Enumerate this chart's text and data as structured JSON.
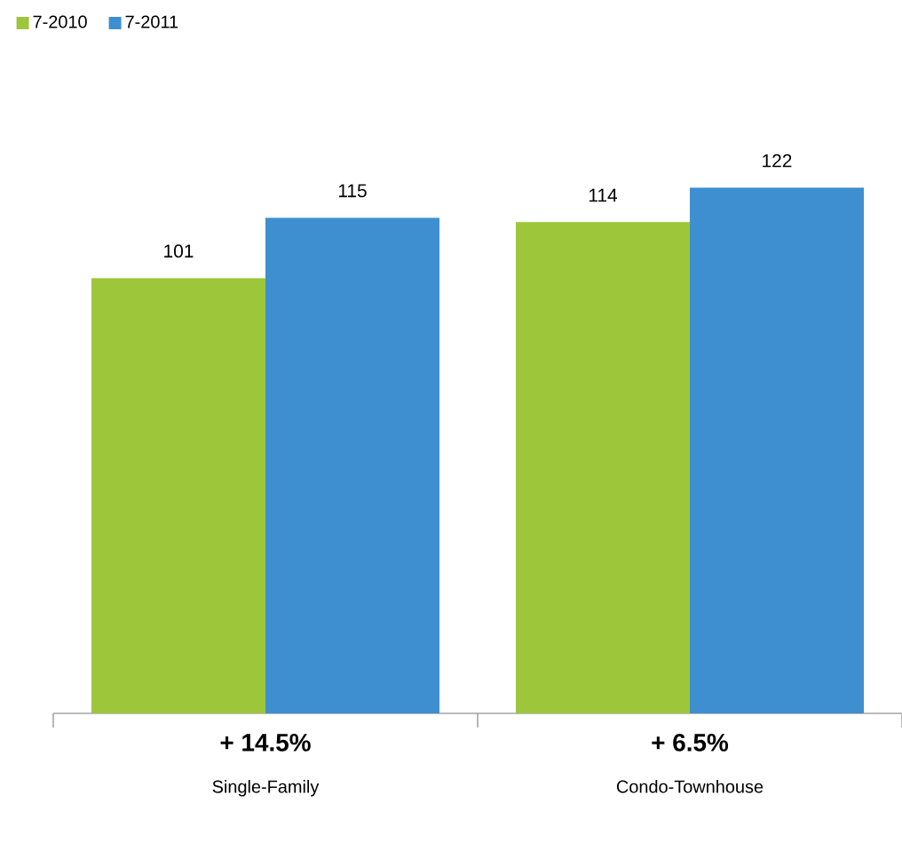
{
  "chart_data": {
    "type": "bar",
    "categories": [
      "Single-Family",
      "Condo-Townhouse"
    ],
    "series": [
      {
        "name": "7-2010",
        "color": "#9dc63b",
        "values": [
          101,
          114
        ]
      },
      {
        "name": "7-2011",
        "color": "#3e8fd0",
        "values": [
          115,
          122
        ]
      }
    ],
    "data_labels": true,
    "legend": "top left",
    "tick_labels": "x",
    "grid": false,
    "annotations": [
      "+ 14.5%",
      "+ 6.5%"
    ]
  }
}
